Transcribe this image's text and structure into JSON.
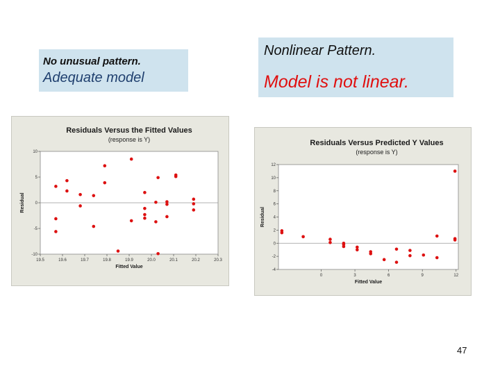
{
  "captions": {
    "left": {
      "line1": "No unusual pattern.",
      "line2": "Adequate model"
    },
    "right": {
      "line1": "Nonlinear Pattern.",
      "line2": "Model is not linear."
    }
  },
  "colors": {
    "caption_bg": "#cfe3ee",
    "point": "#dd1111",
    "accent_red_text": "#e01010",
    "zero_line": "#999999",
    "panel_bg": "#e8e8e0"
  },
  "page_number": "47",
  "chart_data": [
    {
      "type": "scatter",
      "title": "Residuals Versus the Fitted Values",
      "subtitle": "(response is Y)",
      "xlabel": "Fitted Value",
      "ylabel": "Residual",
      "xlim": [
        19.5,
        20.3
      ],
      "ylim": [
        -10,
        10
      ],
      "x_ticks": [
        19.5,
        19.6,
        19.7,
        19.8,
        19.9,
        20.0,
        20.1,
        20.2,
        20.3
      ],
      "x_tick_labels": [
        "19.5",
        "19.6",
        "19.7",
        "19.8",
        "19.9",
        "20.0",
        "20.1",
        "20.2",
        "20.3"
      ],
      "y_ticks": [
        10,
        5,
        0,
        -5,
        -10
      ],
      "y_tick_labels": [
        "10",
        "5",
        "0",
        "-5",
        "-10"
      ],
      "zero_line": true,
      "points": [
        {
          "x": 19.57,
          "y": 3.2
        },
        {
          "x": 19.57,
          "y": -3.1
        },
        {
          "x": 19.57,
          "y": -5.6
        },
        {
          "x": 19.62,
          "y": 4.3
        },
        {
          "x": 19.62,
          "y": 2.3
        },
        {
          "x": 19.68,
          "y": 1.6
        },
        {
          "x": 19.68,
          "y": -0.6
        },
        {
          "x": 19.74,
          "y": 1.4
        },
        {
          "x": 19.74,
          "y": -4.6
        },
        {
          "x": 19.79,
          "y": 7.2
        },
        {
          "x": 19.79,
          "y": 3.9
        },
        {
          "x": 19.85,
          "y": -9.4
        },
        {
          "x": 19.91,
          "y": 8.5
        },
        {
          "x": 19.91,
          "y": -3.5
        },
        {
          "x": 19.97,
          "y": 2.0
        },
        {
          "x": 19.97,
          "y": -1.1
        },
        {
          "x": 19.97,
          "y": -2.3
        },
        {
          "x": 19.97,
          "y": -3.0
        },
        {
          "x": 20.02,
          "y": -3.7
        },
        {
          "x": 20.02,
          "y": 0.1
        },
        {
          "x": 20.03,
          "y": 4.9
        },
        {
          "x": 20.03,
          "y": -9.9
        },
        {
          "x": 20.07,
          "y": 0.2
        },
        {
          "x": 20.07,
          "y": -0.3
        },
        {
          "x": 20.07,
          "y": -2.7
        },
        {
          "x": 20.11,
          "y": 5.4
        },
        {
          "x": 20.11,
          "y": 5.1
        },
        {
          "x": 20.19,
          "y": 0.7
        },
        {
          "x": 20.19,
          "y": -0.2
        },
        {
          "x": 20.19,
          "y": -1.4
        }
      ]
    },
    {
      "type": "scatter",
      "title": "Residuals Versus Predicted Y Values",
      "subtitle": "(response is Y)",
      "xlabel": "Fitted Value",
      "ylabel": "Residual",
      "xlim": [
        -3.8,
        12.2
      ],
      "ylim": [
        -4,
        12
      ],
      "x_ticks": [
        0,
        3,
        6,
        9,
        12
      ],
      "x_tick_labels": [
        "0",
        "3",
        "6",
        "9",
        "12"
      ],
      "y_ticks": [
        12,
        10,
        8,
        6,
        4,
        2,
        0,
        -2,
        -4
      ],
      "y_tick_labels": [
        "12",
        "10",
        "8",
        "6",
        "4",
        "2",
        "0",
        "-2",
        "-4"
      ],
      "zero_line": true,
      "points": [
        {
          "x": -3.5,
          "y": 1.9
        },
        {
          "x": -3.5,
          "y": 1.6
        },
        {
          "x": -1.6,
          "y": 1.0
        },
        {
          "x": 0.8,
          "y": 0.6
        },
        {
          "x": 0.8,
          "y": 0.1
        },
        {
          "x": 2.0,
          "y": 0.0
        },
        {
          "x": 2.0,
          "y": -0.2
        },
        {
          "x": 2.0,
          "y": -0.5
        },
        {
          "x": 3.2,
          "y": -0.6
        },
        {
          "x": 3.2,
          "y": -1.0
        },
        {
          "x": 4.4,
          "y": -1.3
        },
        {
          "x": 4.4,
          "y": -1.6
        },
        {
          "x": 5.6,
          "y": -2.5
        },
        {
          "x": 6.7,
          "y": -0.9
        },
        {
          "x": 6.7,
          "y": -2.9
        },
        {
          "x": 7.9,
          "y": -1.1
        },
        {
          "x": 7.9,
          "y": -1.9
        },
        {
          "x": 9.1,
          "y": -1.8
        },
        {
          "x": 10.3,
          "y": 1.1
        },
        {
          "x": 10.3,
          "y": -2.2
        },
        {
          "x": 11.9,
          "y": 11.0
        },
        {
          "x": 11.9,
          "y": 0.7
        },
        {
          "x": 11.9,
          "y": 0.5
        }
      ]
    }
  ]
}
